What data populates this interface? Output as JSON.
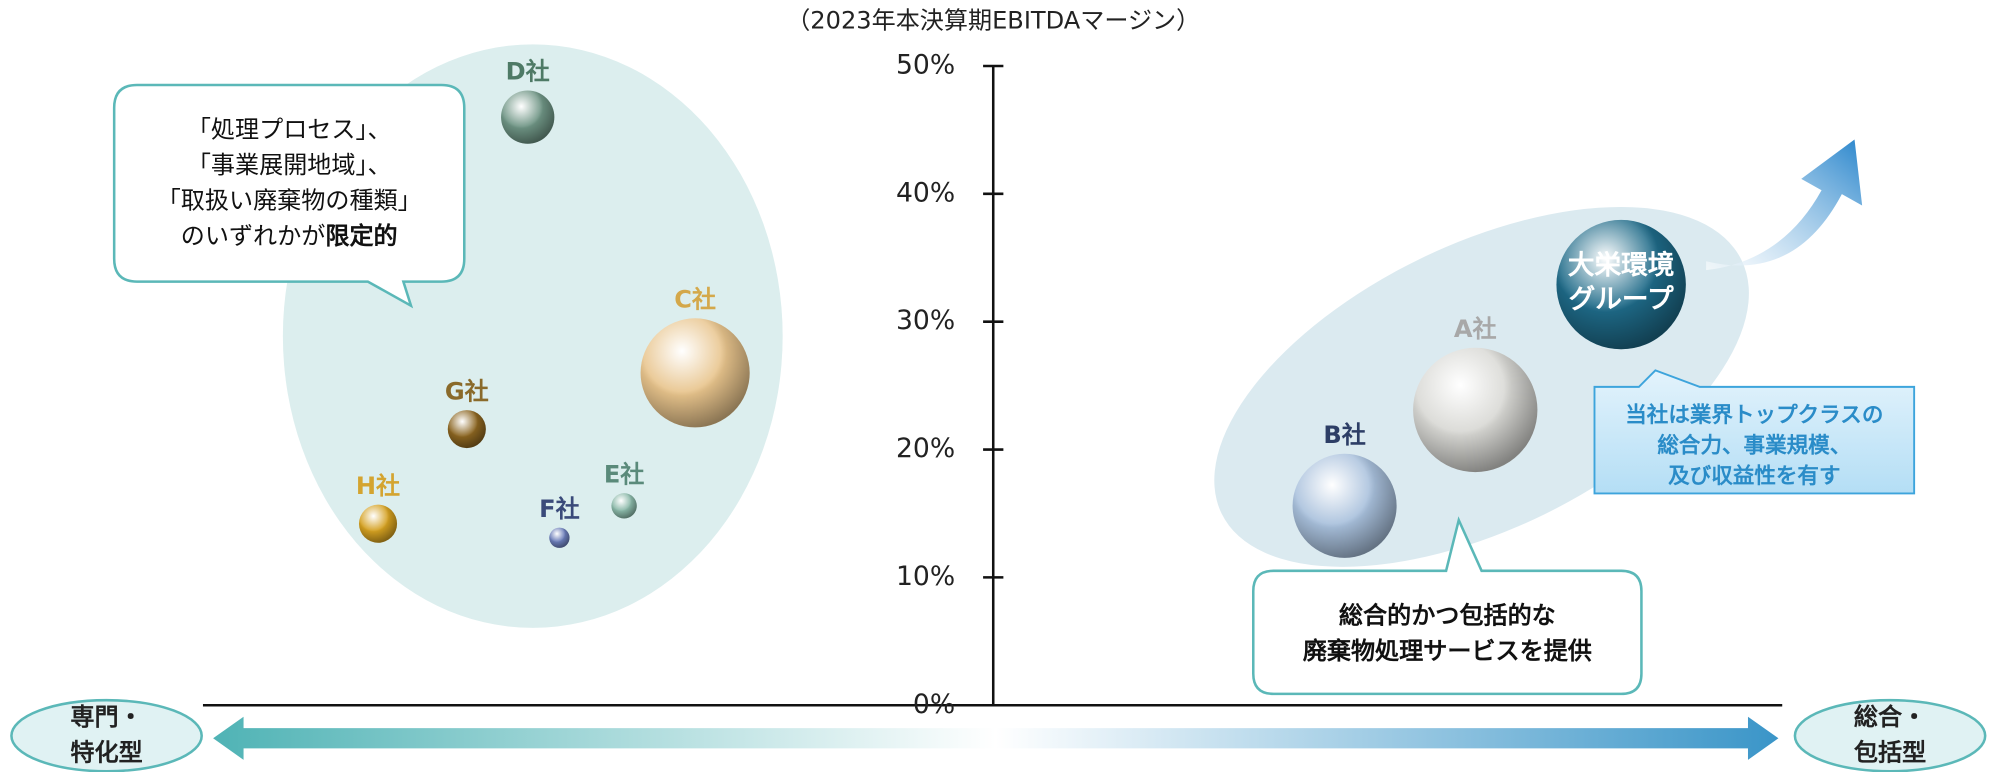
{
  "chart_data": {
    "type": "bubble",
    "title": "（2023年本決算期EBITDAマージン）",
    "ylim": [
      0,
      50
    ],
    "yticks": [
      {
        "value": 0,
        "label": "0%"
      },
      {
        "value": 10,
        "label": "10%"
      },
      {
        "value": 20,
        "label": "20%"
      },
      {
        "value": 30,
        "label": "30%"
      },
      {
        "value": 40,
        "label": "40%"
      },
      {
        "value": 50,
        "label": "50%"
      }
    ],
    "series": [
      {
        "name": "D社",
        "color": "#6e9484",
        "label_color": "#4e7a66",
        "values": [
          46
        ],
        "sizes": [
          21
        ]
      },
      {
        "name": "C社",
        "color": "#e8c48c",
        "label_color": "#d4a84a",
        "values": [
          26
        ],
        "sizes": [
          43
        ]
      },
      {
        "name": "G社",
        "color": "#8a6420",
        "label_color": "#8a6a2a",
        "values": [
          21.6
        ],
        "sizes": [
          15
        ]
      },
      {
        "name": "H社",
        "color": "#d4a020",
        "label_color": "#d4a430",
        "values": [
          14.2
        ],
        "sizes": [
          15
        ]
      },
      {
        "name": "F社",
        "color": "#6a7cb8",
        "label_color": "#3a4a7a",
        "values": [
          13.1
        ],
        "sizes": [
          8
        ]
      },
      {
        "name": "E社",
        "color": "#8ab8a8",
        "label_color": "#5a8a7a",
        "values": [
          15.6
        ],
        "sizes": [
          10
        ]
      },
      {
        "name": "B社",
        "color": "#a8c0dc",
        "label_color": "#2d3e66",
        "values": [
          15.6
        ],
        "sizes": [
          41
        ]
      },
      {
        "name": "A社",
        "color": "#d8d8d4",
        "label_color": "#a8a8a8",
        "values": [
          23.1
        ],
        "sizes": [
          49
        ]
      },
      {
        "name": "大栄環境グループ",
        "color": "#1e6a88",
        "label_color": "#ffffff",
        "values": [
          32.9
        ],
        "sizes": [
          51
        ]
      }
    ],
    "x_axis_ends": {
      "left": [
        "専門・",
        "特化型"
      ],
      "right": [
        "総合・",
        "包括型"
      ]
    },
    "annotations": {
      "specialized": [
        "「処理プロセス」、",
        "「事業展開地域」、",
        "「取扱い廃棄物の種類」",
        "のいずれかが",
        "限定的"
      ],
      "comprehensive": [
        "総合的かつ包括的な",
        "廃棄物処理サービスを提供"
      ],
      "company": [
        "当社は業界トップクラスの",
        "総合力、事業規模、",
        "及び収益性を有す"
      ]
    }
  }
}
